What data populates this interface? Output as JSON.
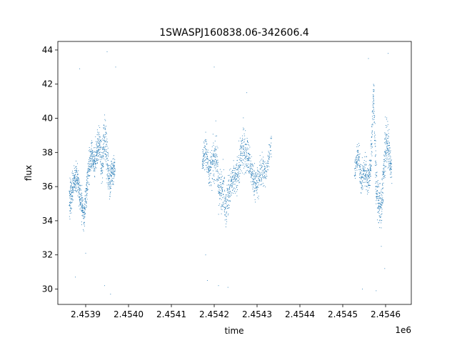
{
  "chart_data": {
    "type": "scatter",
    "title": "1SWASPJ160838.06-342606.4",
    "xlabel": "time",
    "ylabel": "flux",
    "x_offset_label": "1e6",
    "xlim": [
      2.453835,
      2.45466
    ],
    "ylim": [
      29.1,
      44.5
    ],
    "x_ticks": [
      2.4539,
      2.454,
      2.4541,
      2.4542,
      2.4543,
      2.4544,
      2.4545,
      2.4546
    ],
    "x_tick_labels": [
      "2.4539",
      "2.4540",
      "2.4541",
      "2.4542",
      "2.4543",
      "2.4544",
      "2.4545",
      "2.4546"
    ],
    "y_ticks": [
      30,
      32,
      34,
      36,
      38,
      40,
      42,
      44
    ],
    "y_tick_labels": [
      "30",
      "32",
      "34",
      "36",
      "38",
      "40",
      "42",
      "44"
    ],
    "grid": false,
    "marker_color": "#1f77b4",
    "series": [
      {
        "segments": [
          {
            "x": [
              2.453862,
              2.453866,
              2.453872,
              2.453878,
              2.453884,
              2.45389,
              2.453896,
              2.453902,
              2.453908,
              2.453914,
              2.45392,
              2.453926,
              2.453932,
              2.453938,
              2.453944,
              2.45395,
              2.453956,
              2.453962,
              2.453968
            ],
            "y": [
              35.0,
              35.6,
              36.2,
              36.7,
              36.0,
              35.0,
              34.3,
              35.8,
              37.2,
              37.8,
              37.2,
              38.2,
              38.6,
              37.0,
              39.2,
              37.6,
              36.3,
              36.9,
              37.1
            ],
            "spread": [
              1.3,
              1.1,
              0.9,
              0.9,
              0.9,
              1.1,
              0.9,
              1.0,
              1.0,
              0.9,
              0.9,
              1.2,
              1.0,
              1.1,
              1.3,
              1.3,
              1.3,
              1.1,
              0.8
            ]
          },
          {
            "x": [
              2.454172,
              2.45418,
              2.454188,
              2.454196,
              2.454204,
              2.454212,
              2.45422,
              2.454228,
              2.454236,
              2.454244,
              2.454252,
              2.45426,
              2.454268,
              2.454276,
              2.454284,
              2.454292,
              2.4543,
              2.45431,
              2.45432,
              2.454334
            ],
            "y": [
              37.4,
              38.2,
              36.9,
              37.2,
              38.0,
              35.6,
              36.1,
              34.8,
              35.9,
              36.3,
              36.5,
              37.4,
              38.3,
              38.0,
              37.2,
              36.4,
              36.1,
              37.0,
              36.8,
              38.6
            ],
            "spread": [
              0.6,
              1.2,
              1.0,
              1.2,
              1.6,
              1.4,
              1.4,
              1.3,
              1.2,
              1.1,
              1.0,
              1.3,
              1.4,
              1.2,
              1.1,
              1.0,
              1.1,
              1.2,
              0.8,
              0.7
            ]
          },
          {
            "x": [
              2.454528,
              2.454536,
              2.454544,
              2.454552,
              2.45456,
              2.454566,
              2.454572,
              2.454578,
              2.454584,
              2.45459,
              2.454596,
              2.454602,
              2.454608,
              2.454614
            ],
            "y": [
              36.9,
              37.9,
              36.3,
              37.0,
              36.4,
              37.3,
              41.8,
              36.0,
              35.0,
              34.7,
              37.0,
              38.8,
              38.0,
              37.0
            ],
            "spread": [
              0.5,
              0.8,
              1.0,
              1.1,
              1.0,
              1.1,
              0.5,
              1.3,
              1.4,
              1.2,
              1.4,
              1.5,
              1.4,
              0.8
            ]
          }
        ],
        "outliers": [
          [
            2.453886,
            42.9
          ],
          [
            2.45395,
            43.9
          ],
          [
            2.45397,
            43.0
          ],
          [
            2.453944,
            30.2
          ],
          [
            2.453958,
            29.7
          ],
          [
            2.4539,
            32.1
          ],
          [
            2.453876,
            30.7
          ],
          [
            2.4542,
            43.0
          ],
          [
            2.454184,
            30.5
          ],
          [
            2.45421,
            30.2
          ],
          [
            2.454232,
            30.1
          ],
          [
            2.45418,
            32.0
          ],
          [
            2.454276,
            41.5
          ],
          [
            2.45456,
            43.5
          ],
          [
            2.454606,
            43.8
          ],
          [
            2.454598,
            31.2
          ],
          [
            2.454578,
            29.9
          ],
          [
            2.454546,
            30.0
          ],
          [
            2.45459,
            32.5
          ]
        ]
      }
    ]
  }
}
